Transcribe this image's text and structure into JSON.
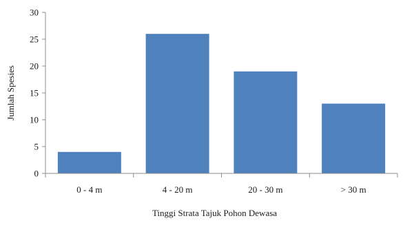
{
  "chart_data": {
    "type": "bar",
    "title": "",
    "xlabel": "Tinggi Strata Tajuk Pohon Dewasa",
    "ylabel": "Jumlah Spesies",
    "categories": [
      "0 - 4 m",
      "4 - 20 m",
      "20 - 30 m",
      "> 30 m"
    ],
    "values": [
      4,
      26,
      19,
      13
    ],
    "ylim": [
      0,
      30
    ],
    "yticks": [
      0,
      5,
      10,
      15,
      20,
      25,
      30
    ],
    "grid": false,
    "legend": "none",
    "bar_color": "#4f81bd"
  }
}
